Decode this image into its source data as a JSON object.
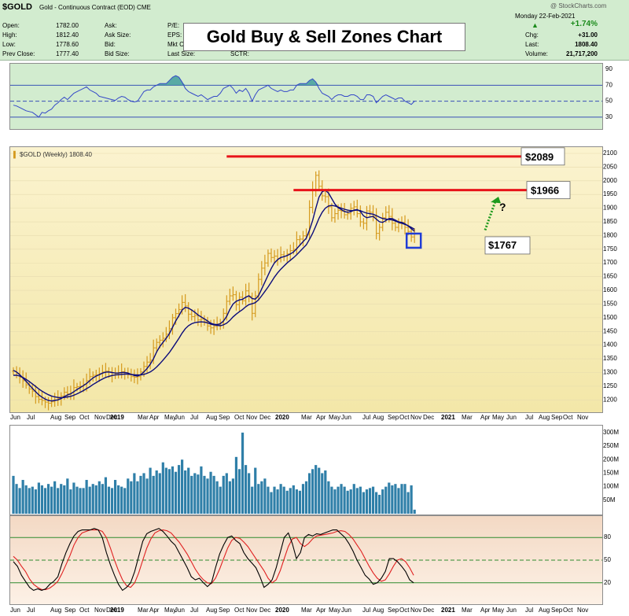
{
  "header": {
    "symbol": "$GOLD",
    "name": "Gold - Continuous Contract (EOD)  CME",
    "watermark": "@ StockCharts.com",
    "date": "Monday   22-Feb-2021",
    "change_percent": "+1.74%",
    "quote": [
      {
        "label": "Open:",
        "value": "1782.00"
      },
      {
        "label": "High:",
        "value": "1812.40"
      },
      {
        "label": "Low:",
        "value": "1778.60"
      },
      {
        "label": "Prev Close:",
        "value": "1777.40"
      }
    ],
    "mid": [
      "Ask:",
      "Ask Size:",
      "Bid:",
      "Bid Size:"
    ],
    "right": [
      "P/E:",
      "EPS:",
      "Mkt Ca",
      "Last Size:"
    ],
    "sctr": "SCTR:",
    "stats": [
      {
        "label": "Chg:",
        "value": "+31.00"
      },
      {
        "label": "Last:",
        "value": "1808.40"
      },
      {
        "label": "Volume:",
        "value": "21,717,200"
      }
    ]
  },
  "colors": {
    "candle": "#d59a1e",
    "ma": "#0b0b7a",
    "zone_line": "#e8141a",
    "arrow": "#1e9a1e",
    "highlight": "#1f3cd6",
    "rsi_line": "#3448c8",
    "rsi_fill": "#3b9a9a",
    "volume": "#2f7fa8",
    "stoch_k": "#000000",
    "stoch_d": "#e02020"
  },
  "chart_data": {
    "type": "bar",
    "title": "Gold Buy & Sell Zones Chart",
    "legend": "$GOLD (Weekly) 1808.40",
    "x_labels": [
      "Jun",
      "Jul",
      "Aug",
      "Sep",
      "Oct",
      "Nov",
      "Dec",
      "2019",
      "Mar",
      "Apr",
      "May",
      "Jun",
      "Jul",
      "Aug",
      "Sep",
      "Oct",
      "Nov",
      "Dec",
      "2020",
      "Mar",
      "Apr",
      "May",
      "Jun",
      "Jul",
      "Aug",
      "Sep",
      "Oct",
      "Nov",
      "Dec",
      "2021",
      "Mar",
      "Apr",
      "May",
      "Jun",
      "Jul",
      "Aug",
      "Sep",
      "Oct",
      "Nov"
    ],
    "price_axis": {
      "ticks": [
        2100,
        2050,
        2000,
        1950,
        1900,
        1850,
        1800,
        1750,
        1700,
        1650,
        1600,
        1550,
        1500,
        1450,
        1400,
        1350,
        1300,
        1250,
        1200
      ],
      "ylim": [
        1175,
        2100
      ]
    },
    "price_close": [
      1305,
      1297,
      1282,
      1270,
      1255,
      1240,
      1232,
      1212,
      1202,
      1198,
      1192,
      1188,
      1193,
      1200,
      1205,
      1214,
      1228,
      1222,
      1226,
      1245,
      1248,
      1250,
      1257,
      1270,
      1285,
      1290,
      1292,
      1296,
      1302,
      1305,
      1302,
      1290,
      1296,
      1300,
      1303,
      1300,
      1292,
      1285,
      1283,
      1285,
      1302,
      1322,
      1338,
      1345,
      1390,
      1410,
      1418,
      1425,
      1440,
      1460,
      1500,
      1515,
      1530,
      1556,
      1543,
      1513,
      1504,
      1508,
      1492,
      1495,
      1485,
      1470,
      1463,
      1468,
      1474,
      1482,
      1516,
      1560,
      1580,
      1584,
      1548,
      1575,
      1562,
      1598,
      1578,
      1516,
      1580,
      1640,
      1681,
      1700,
      1735,
      1720,
      1725,
      1716,
      1730,
      1725,
      1733,
      1745,
      1750,
      1785,
      1787,
      1799,
      1804,
      1903,
      1968,
      2020,
      1980,
      1945,
      1942,
      1905,
      1865,
      1880,
      1892,
      1889,
      1876,
      1880,
      1900,
      1905,
      1880,
      1850,
      1845,
      1890,
      1885,
      1870,
      1808,
      1830,
      1865,
      1885,
      1870,
      1845,
      1830,
      1845,
      1848,
      1830,
      1815,
      1795,
      1808
    ],
    "price_sma_fast": [
      1308,
      1302,
      1292,
      1280,
      1268,
      1255,
      1242,
      1230,
      1218,
      1210,
      1203,
      1198,
      1196,
      1198,
      1200,
      1205,
      1212,
      1218,
      1222,
      1230,
      1238,
      1245,
      1252,
      1260,
      1270,
      1280,
      1287,
      1292,
      1298,
      1301,
      1302,
      1300,
      1298,
      1298,
      1300,
      1300,
      1298,
      1293,
      1289,
      1287,
      1292,
      1302,
      1315,
      1330,
      1350,
      1375,
      1395,
      1410,
      1425,
      1442,
      1465,
      1488,
      1508,
      1528,
      1538,
      1535,
      1528,
      1520,
      1510,
      1503,
      1496,
      1488,
      1480,
      1476,
      1475,
      1478,
      1488,
      1505,
      1530,
      1550,
      1560,
      1565,
      1567,
      1575,
      1580,
      1570,
      1568,
      1580,
      1605,
      1630,
      1655,
      1680,
      1700,
      1712,
      1720,
      1723,
      1727,
      1733,
      1740,
      1752,
      1765,
      1778,
      1790,
      1820,
      1855,
      1900,
      1940,
      1960,
      1965,
      1955,
      1935,
      1915,
      1902,
      1895,
      1888,
      1885,
      1887,
      1893,
      1895,
      1888,
      1872,
      1865,
      1868,
      1870,
      1860,
      1850,
      1848,
      1855,
      1862,
      1862,
      1856,
      1850,
      1848,
      1843,
      1835,
      1825,
      1816
    ],
    "price_sma_slow": [
      1290,
      1290,
      1287,
      1282,
      1275,
      1267,
      1258,
      1249,
      1240,
      1232,
      1225,
      1219,
      1214,
      1211,
      1209,
      1208,
      1209,
      1211,
      1213,
      1217,
      1222,
      1228,
      1234,
      1241,
      1248,
      1256,
      1263,
      1270,
      1276,
      1282,
      1286,
      1289,
      1291,
      1292,
      1293,
      1294,
      1294,
      1293,
      1292,
      1291,
      1291,
      1293,
      1297,
      1302,
      1310,
      1320,
      1332,
      1345,
      1359,
      1373,
      1390,
      1407,
      1425,
      1444,
      1460,
      1471,
      1478,
      1482,
      1484,
      1485,
      1484,
      1481,
      1477,
      1474,
      1472,
      1471,
      1474,
      1480,
      1490,
      1503,
      1513,
      1522,
      1530,
      1540,
      1548,
      1551,
      1555,
      1565,
      1580,
      1596,
      1612,
      1630,
      1648,
      1664,
      1677,
      1689,
      1700,
      1710,
      1719,
      1730,
      1742,
      1754,
      1766,
      1786,
      1808,
      1835,
      1863,
      1885,
      1900,
      1908,
      1910,
      1908,
      1904,
      1900,
      1896,
      1893,
      1891,
      1892,
      1893,
      1891,
      1886,
      1882,
      1880,
      1878,
      1873,
      1867,
      1862,
      1860,
      1859,
      1857,
      1853,
      1848,
      1845,
      1841,
      1836,
      1830,
      1823
    ],
    "zones": [
      {
        "label": "$2089",
        "value": 2089
      },
      {
        "label": "$1966",
        "value": 1966
      },
      {
        "label": "$1767",
        "value": 1767
      }
    ],
    "annotation": "?",
    "rsi": {
      "ticks": [
        90,
        70,
        50,
        30
      ],
      "values": [
        45,
        44,
        42,
        40,
        38,
        37,
        36,
        33,
        30,
        36,
        35,
        38,
        40,
        45,
        48,
        52,
        55,
        52,
        56,
        60,
        62,
        64,
        66,
        68,
        64,
        62,
        60,
        56,
        55,
        54,
        53,
        52,
        51,
        54,
        56,
        55,
        52,
        50,
        49,
        50,
        56,
        62,
        64,
        64,
        68,
        70,
        72,
        72,
        72,
        76,
        80,
        82,
        80,
        74,
        66,
        62,
        60,
        58,
        56,
        58,
        55,
        52,
        54,
        56,
        56,
        60,
        66,
        68,
        70,
        66,
        60,
        64,
        62,
        66,
        60,
        50,
        58,
        64,
        66,
        68,
        70,
        66,
        64,
        62,
        64,
        62,
        62,
        64,
        64,
        70,
        72,
        72,
        72,
        76,
        78,
        74,
        66,
        60,
        58,
        56,
        52,
        56,
        58,
        58,
        56,
        56,
        58,
        58,
        56,
        52,
        52,
        58,
        58,
        56,
        48,
        52,
        56,
        58,
        56,
        54,
        52,
        54,
        54,
        50,
        48,
        46,
        50
      ]
    },
    "volume": {
      "ticks": [
        "300M",
        "250M",
        "200M",
        "150M",
        "100M",
        "50M"
      ],
      "values": [
        140,
        110,
        95,
        125,
        105,
        95,
        100,
        90,
        115,
        105,
        95,
        110,
        100,
        120,
        95,
        110,
        105,
        130,
        90,
        115,
        100,
        95,
        95,
        125,
        100,
        110,
        105,
        120,
        110,
        135,
        100,
        95,
        125,
        105,
        100,
        95,
        130,
        120,
        150,
        120,
        140,
        150,
        130,
        170,
        140,
        160,
        150,
        190,
        170,
        165,
        175,
        155,
        180,
        200,
        160,
        170,
        140,
        150,
        145,
        175,
        140,
        130,
        155,
        140,
        120,
        100,
        140,
        150,
        120,
        130,
        210,
        165,
        300,
        180,
        150,
        100,
        170,
        110,
        120,
        130,
        100,
        80,
        100,
        90,
        110,
        100,
        85,
        95,
        105,
        90,
        85,
        110,
        120,
        150,
        165,
        180,
        170,
        150,
        160,
        120,
        100,
        90,
        100,
        110,
        100,
        85,
        90,
        110,
        95,
        100,
        80,
        90,
        95,
        100,
        80,
        70,
        90,
        100,
        115,
        105,
        110,
        95,
        110,
        110,
        80,
        105,
        15
      ]
    },
    "stochastic": {
      "ticks": [
        80,
        50,
        20
      ],
      "k": [
        48,
        42,
        30,
        22,
        14,
        10,
        12,
        10,
        12,
        18,
        22,
        28,
        45,
        60,
        72,
        82,
        88,
        90,
        90,
        90,
        92,
        90,
        80,
        60,
        44,
        30,
        18,
        10,
        14,
        20,
        35,
        55,
        75,
        85,
        88,
        90,
        92,
        88,
        82,
        75,
        70,
        60,
        50,
        40,
        28,
        24,
        26,
        20,
        15,
        20,
        40,
        58,
        70,
        80,
        82,
        76,
        72,
        60,
        52,
        46,
        40,
        28,
        14,
        18,
        24,
        40,
        60,
        80,
        86,
        72,
        52,
        60,
        80,
        84,
        82,
        85,
        84,
        86,
        88,
        90,
        90,
        85,
        80,
        72,
        62,
        50,
        40,
        30,
        25,
        18,
        20,
        26,
        35,
        52,
        52,
        48,
        42,
        35,
        24,
        20
      ],
      "d": [
        55,
        50,
        42,
        35,
        25,
        18,
        14,
        11,
        11,
        13,
        17,
        22,
        32,
        44,
        56,
        70,
        80,
        86,
        88,
        90,
        90,
        90,
        88,
        80,
        66,
        50,
        36,
        24,
        16,
        14,
        20,
        33,
        50,
        66,
        78,
        86,
        89,
        90,
        89,
        86,
        80,
        74,
        66,
        58,
        48,
        38,
        30,
        24,
        20,
        19,
        26,
        38,
        52,
        66,
        76,
        80,
        79,
        74,
        68,
        60,
        52,
        44,
        36,
        26,
        20,
        24,
        36,
        52,
        68,
        78,
        80,
        72,
        68,
        72,
        78,
        82,
        83,
        84,
        85,
        86,
        88,
        89,
        88,
        84,
        78,
        70,
        62,
        52,
        42,
        33,
        26,
        22,
        24,
        32,
        42,
        50,
        52,
        48,
        40,
        30
      ]
    }
  }
}
